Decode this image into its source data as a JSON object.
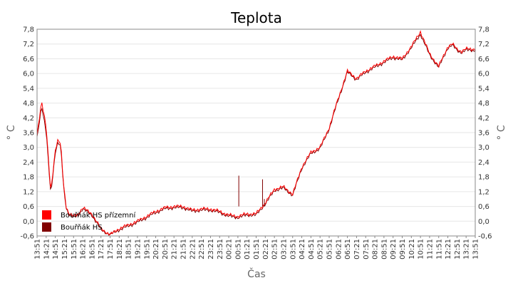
{
  "chart_data": {
    "type": "line",
    "title": "Teplota",
    "xlabel": "Čas",
    "ylabel_left": "° C",
    "ylabel_right": "° C",
    "ylim": [
      -0.6,
      7.8
    ],
    "y_ticks": [
      "7,8",
      "7,2",
      "6,6",
      "6,0",
      "5,4",
      "4,8",
      "4,2",
      "3,6",
      "3,0",
      "2,4",
      "1,8",
      "1,2",
      "0,6",
      "0,0",
      "-0,6"
    ],
    "x_ticks": [
      "13:51",
      "14:21",
      "14:51",
      "15:21",
      "15:51",
      "16:21",
      "16:51",
      "17:21",
      "17:51",
      "18:21",
      "18:51",
      "19:21",
      "19:51",
      "20:21",
      "20:51",
      "21:21",
      "21:51",
      "22:21",
      "22:51",
      "23:21",
      "23:51",
      "00:21",
      "00:51",
      "01:21",
      "01:51",
      "02:21",
      "02:51",
      "03:21",
      "03:51",
      "04:21",
      "04:51",
      "05:21",
      "05:51",
      "06:21",
      "06:51",
      "07:21",
      "07:51",
      "08:21",
      "08:51",
      "09:21",
      "09:51",
      "10:21",
      "10:51",
      "11:21",
      "11:51",
      "12:21",
      "12:51",
      "13:21",
      "13:51"
    ],
    "grid": true,
    "legend_position": "bottom-left",
    "series": [
      {
        "name": "Bouřňák HS přízemní",
        "color": "#ff0000",
        "x_hours": [
          0,
          0.25,
          0.5,
          0.75,
          1.0,
          1.15,
          1.3,
          1.45,
          1.6,
          1.75,
          2.0,
          2.25,
          2.5,
          3.0,
          3.5,
          4.0,
          4.5,
          5.0,
          5.5,
          6.0,
          6.5,
          7.0,
          7.5,
          8.0,
          8.5,
          9.0,
          9.5,
          10.0,
          10.5,
          11.0,
          11.5,
          12.0,
          12.5,
          13.0,
          13.5,
          14.0,
          14.5,
          15.0,
          15.5,
          16.0,
          16.5,
          17.0,
          17.5,
          18.0,
          18.5,
          19.0,
          19.5,
          20.0,
          20.5,
          21.0,
          21.5,
          22.0,
          22.5,
          22.75,
          23.0,
          23.25,
          23.5,
          23.75,
          24.0
        ],
        "values": [
          3.5,
          4.9,
          3.8,
          1.2,
          2.9,
          3.3,
          3.1,
          1.5,
          0.6,
          0.3,
          0.2,
          0.3,
          0.55,
          0.3,
          -0.3,
          -0.55,
          -0.3,
          -0.15,
          0.0,
          0.2,
          0.4,
          0.55,
          0.6,
          0.6,
          0.45,
          0.5,
          0.5,
          0.4,
          0.25,
          0.2,
          0.3,
          0.3,
          0.75,
          1.3,
          1.4,
          1.1,
          2.2,
          2.8,
          3.0,
          3.8,
          5.0,
          6.1,
          5.8,
          6.1,
          6.3,
          6.5,
          6.7,
          6.6,
          7.1,
          7.7,
          6.8,
          6.3,
          7.1,
          7.2,
          7.0,
          6.9,
          7.0,
          7.0,
          7.0
        ]
      },
      {
        "name": "Bouřňák HS",
        "color": "#800000",
        "x_hours": [
          0,
          0.25,
          0.5,
          0.75,
          1.0,
          1.15,
          1.3,
          1.45,
          1.6,
          1.75,
          2.0,
          2.25,
          2.5,
          3.0,
          3.5,
          4.0,
          4.5,
          5.0,
          5.5,
          6.0,
          6.5,
          7.0,
          7.5,
          8.0,
          8.5,
          9.0,
          9.5,
          10.0,
          10.5,
          11.0,
          11.5,
          12.0,
          12.5,
          13.0,
          13.5,
          14.0,
          14.5,
          15.0,
          15.5,
          16.0,
          16.5,
          17.0,
          17.5,
          18.0,
          18.5,
          19.0,
          19.5,
          20.0,
          20.5,
          21.0,
          21.5,
          22.0,
          22.5,
          22.75,
          23.0,
          23.25,
          23.5,
          23.75,
          24.0
        ],
        "values": [
          3.4,
          4.7,
          3.6,
          1.1,
          2.8,
          3.2,
          3.0,
          1.4,
          0.55,
          0.25,
          0.15,
          0.25,
          0.5,
          0.25,
          -0.35,
          -0.55,
          -0.35,
          -0.2,
          -0.05,
          0.15,
          0.35,
          0.5,
          0.55,
          0.55,
          0.4,
          0.45,
          0.45,
          0.35,
          0.2,
          0.15,
          0.25,
          0.25,
          0.7,
          1.25,
          1.35,
          1.05,
          2.15,
          2.75,
          2.95,
          3.75,
          4.95,
          6.05,
          5.75,
          6.05,
          6.25,
          6.45,
          6.65,
          6.55,
          7.05,
          7.6,
          6.75,
          6.25,
          7.05,
          7.15,
          6.95,
          6.85,
          6.95,
          6.95,
          6.95
        ]
      }
    ],
    "spikes": [
      {
        "x_hours": 11.05,
        "value": 1.85
      },
      {
        "x_hours": 12.35,
        "value": 1.7
      },
      {
        "x_hours": 12.45,
        "value": 0.9
      }
    ]
  }
}
